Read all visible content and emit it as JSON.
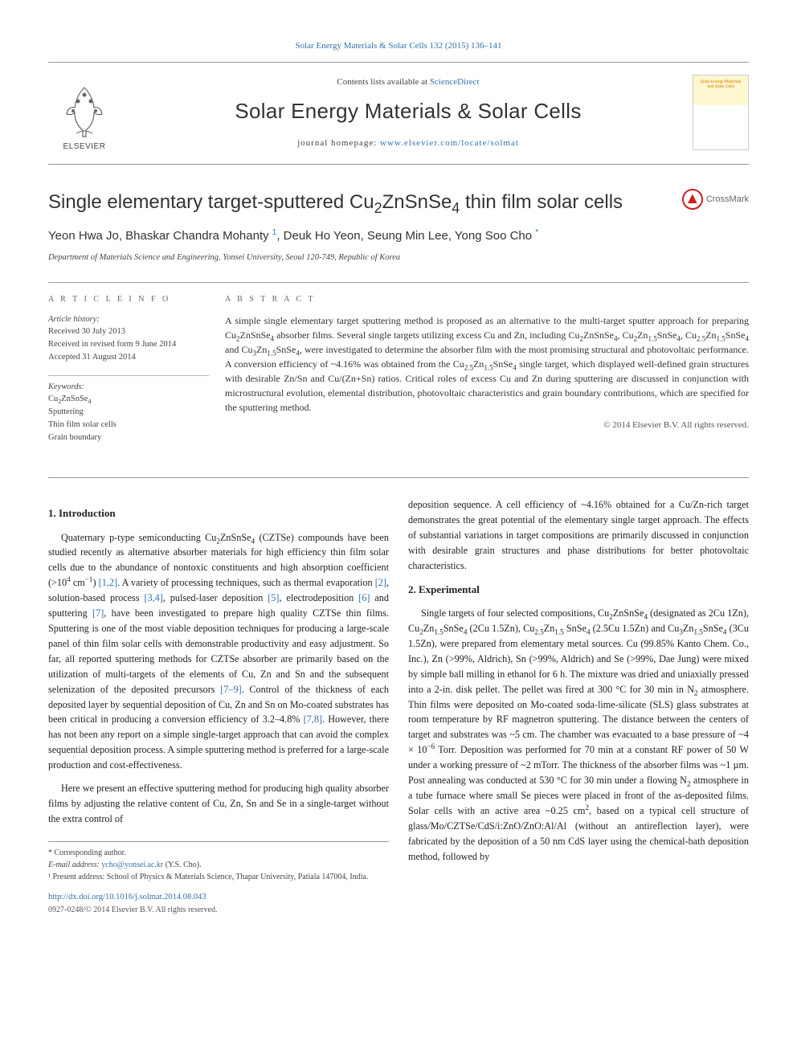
{
  "top_link_prefix": "Solar Energy Materials & Solar Cells 132 (2015) 136–141",
  "header": {
    "contents_prefix": "Contents lists available at ",
    "contents_link": "ScienceDirect",
    "journal_title": "Solar Energy Materials & Solar Cells",
    "homepage_prefix": "journal homepage: ",
    "homepage_link": "www.elsevier.com/locate/solmat",
    "elsevier_label": "ELSEVIER",
    "cover_label": "Solar Energy Materials and Solar Cells"
  },
  "crossmark_label": "CrossMark",
  "title_html": "Single elementary target-sputtered Cu<sub>2</sub>ZnSnSe<sub>4</sub> thin film solar cells",
  "authors_html": "Yeon Hwa Jo, Bhaskar Chandra Mohanty <sup class=\"sup\">1</sup>, Deuk Ho Yeon, Seung Min Lee, Yong Soo Cho <sup class=\"sup\">*</sup>",
  "affiliation": "Department of Materials Science and Engineering, Yonsei University, Seoul 120-749, Republic of Korea",
  "meta": {
    "article_info_label": "A R T I C L E   I N F O",
    "history_label": "Article history:",
    "received": "Received 30 July 2013",
    "revised": "Received in revised form 9 June 2014",
    "accepted": "Accepted 31 August 2014",
    "keywords_label": "Keywords:",
    "keywords_html": "Cu<sub>2</sub>ZnSnSe<sub>4</sub><br>Sputtering<br>Thin film solar cells<br>Grain boundary"
  },
  "abstract": {
    "label": "A B S T R A C T",
    "text_html": "A simple single elementary target sputtering method is proposed as an alternative to the multi-target sputter approach for preparing Cu<sub>2</sub>ZnSnSe<sub>4</sub> absorber films. Several single targets utilizing excess Cu and Zn, including Cu<sub>2</sub>ZnSnSe<sub>4</sub>, Cu<sub>2</sub>Zn<sub>1.5</sub>SnSe<sub>4</sub>, Cu<sub>2.5</sub>Zn<sub>1.5</sub>SnSe<sub>4</sub> and Cu<sub>3</sub>Zn<sub>1.5</sub>SnSe<sub>4</sub>, were investigated to determine the absorber film with the most promising structural and photovoltaic performance. A conversion efficiency of ~4.16% was obtained from the Cu<sub>2.5</sub>Zn<sub>1.5</sub>SnSe<sub>4</sub> single target, which displayed well-defined grain structures with desirable Zn/Sn and Cu/(Zn+Sn) ratios. Critical roles of excess Cu and Zn during sputtering are discussed in conjunction with microstructural evolution, elemental distribution, photovoltaic characteristics and grain boundary contributions, which are specified for the sputtering method.",
    "copyright": "© 2014 Elsevier B.V. All rights reserved."
  },
  "body": {
    "intro_heading": "1.  Introduction",
    "intro_p1_html": "Quaternary p-type semiconducting Cu<sub>2</sub>ZnSnSe<sub>4</sub> (CZTSe) compounds have been studied recently as alternative absorber materials for high efficiency thin film solar cells due to the abundance of nontoxic constituents and high absorption coefficient (&gt;10<sup>4</sup> cm<sup>−1</sup>) <span class=\"ref-link\">[1,2]</span>. A variety of processing techniques, such as thermal evaporation <span class=\"ref-link\">[2]</span>, solution-based process <span class=\"ref-link\">[3,4]</span>, pulsed-laser deposition <span class=\"ref-link\">[5]</span>, electrodeposition <span class=\"ref-link\">[6]</span> and sputtering <span class=\"ref-link\">[7]</span>, have been investigated to prepare high quality CZTSe thin films. Sputtering is one of the most viable deposition techniques for producing a large-scale panel of thin film solar cells with demonstrable productivity and easy adjustment. So far, all reported sputtering methods for CZTSe absorber are primarily based on the utilization of multi-targets of the elements of Cu, Zn and Sn and the subsequent selenization of the deposited precursors <span class=\"ref-link\">[7–9]</span>. Control of the thickness of each deposited layer by sequential deposition of Cu, Zn and Sn on Mo-coated substrates has been critical in producing a conversion efficiency of 3.2–4.8% <span class=\"ref-link\">[7,8]</span>. However, there has not been any report on a simple single-target approach that can avoid the complex sequential deposition process. A simple sputtering method is preferred for a large-scale production and cost-effectiveness.",
    "intro_p2_html": "Here we present an effective sputtering method for producing high quality absorber films by adjusting the relative content of Cu, Zn, Sn and Se in a single-target without the extra control of",
    "col2_p1_html": "deposition sequence. A cell efficiency of ~4.16% obtained for a Cu/Zn-rich target demonstrates the great potential of the elementary single target approach. The effects of substantial variations in target compositions are primarily discussed in conjunction with desirable grain structures and phase distributions for better photovoltaic characteristics.",
    "exp_heading": "2.  Experimental",
    "exp_p1_html": "Single targets of four selected compositions, Cu<sub>2</sub>ZnSnSe<sub>4</sub> (designated as 2Cu 1Zn), Cu<sub>2</sub>Zn<sub>1.5</sub>SnSe<sub>4</sub> (2Cu 1.5Zn), Cu<sub>2.5</sub>Zn<sub>1.5</sub> SnSe<sub>4</sub> (2.5Cu 1.5Zn) and Cu<sub>3</sub>Zn<sub>1.5</sub>SnSe<sub>4</sub> (3Cu 1.5Zn), were prepared from elementary metal sources. Cu (99.85% Kanto Chem. Co., Inc.), Zn (&gt;99%, Aldrich), Sn (&gt;99%, Aldrich) and Se (&gt;99%, Dae Jung) were mixed by simple ball milling in ethanol for 6 h. The mixture was dried and uniaxially pressed into a 2-in. disk pellet. The pellet was fired at 300 °C for 30 min in N<sub>2</sub> atmosphere. Thin films were deposited on Mo-coated soda-lime-silicate (SLS) glass substrates at room temperature by RF magnetron sputtering. The distance between the centers of target and substrates was ~5 cm. The chamber was evacuated to a base pressure of ~4 × 10<sup>−6</sup> Torr. Deposition was performed for 70 min at a constant RF power of 50 W under a working pressure of ~2 mTorr. The thickness of the absorber films was ~1 µm. Post annealing was conducted at 530 °C for 30 min under a flowing N<sub>2</sub> atmosphere in a tube furnace where small Se pieces were placed in front of the as-deposited films. Solar cells with an active area ~0.25 cm<sup>2</sup>, based on a typical cell structure of glass/Mo/CZTSe/CdS/i:ZnO/ZnO:Al/Al (without an antireflection layer), were fabricated by the deposition of a 50 nm CdS layer using the chemical-bath deposition method, followed by"
  },
  "footnotes": {
    "corr": "* Corresponding author.",
    "email_label": "E-mail address: ",
    "email": "ycho@yonsei.ac.kr",
    "email_suffix": " (Y.S. Cho).",
    "note1": "¹ Present address: School of Physics & Materials Science, Thapar University, Patiala 147004, India.",
    "doi": "http://dx.doi.org/10.1016/j.solmat.2014.08.043",
    "issn_copyright": "0927-0248/© 2014 Elsevier B.V. All rights reserved."
  },
  "colors": {
    "link": "#3070b0",
    "rule": "#999999",
    "text": "#222222",
    "elsevier_orange": "#ef7f1a"
  }
}
